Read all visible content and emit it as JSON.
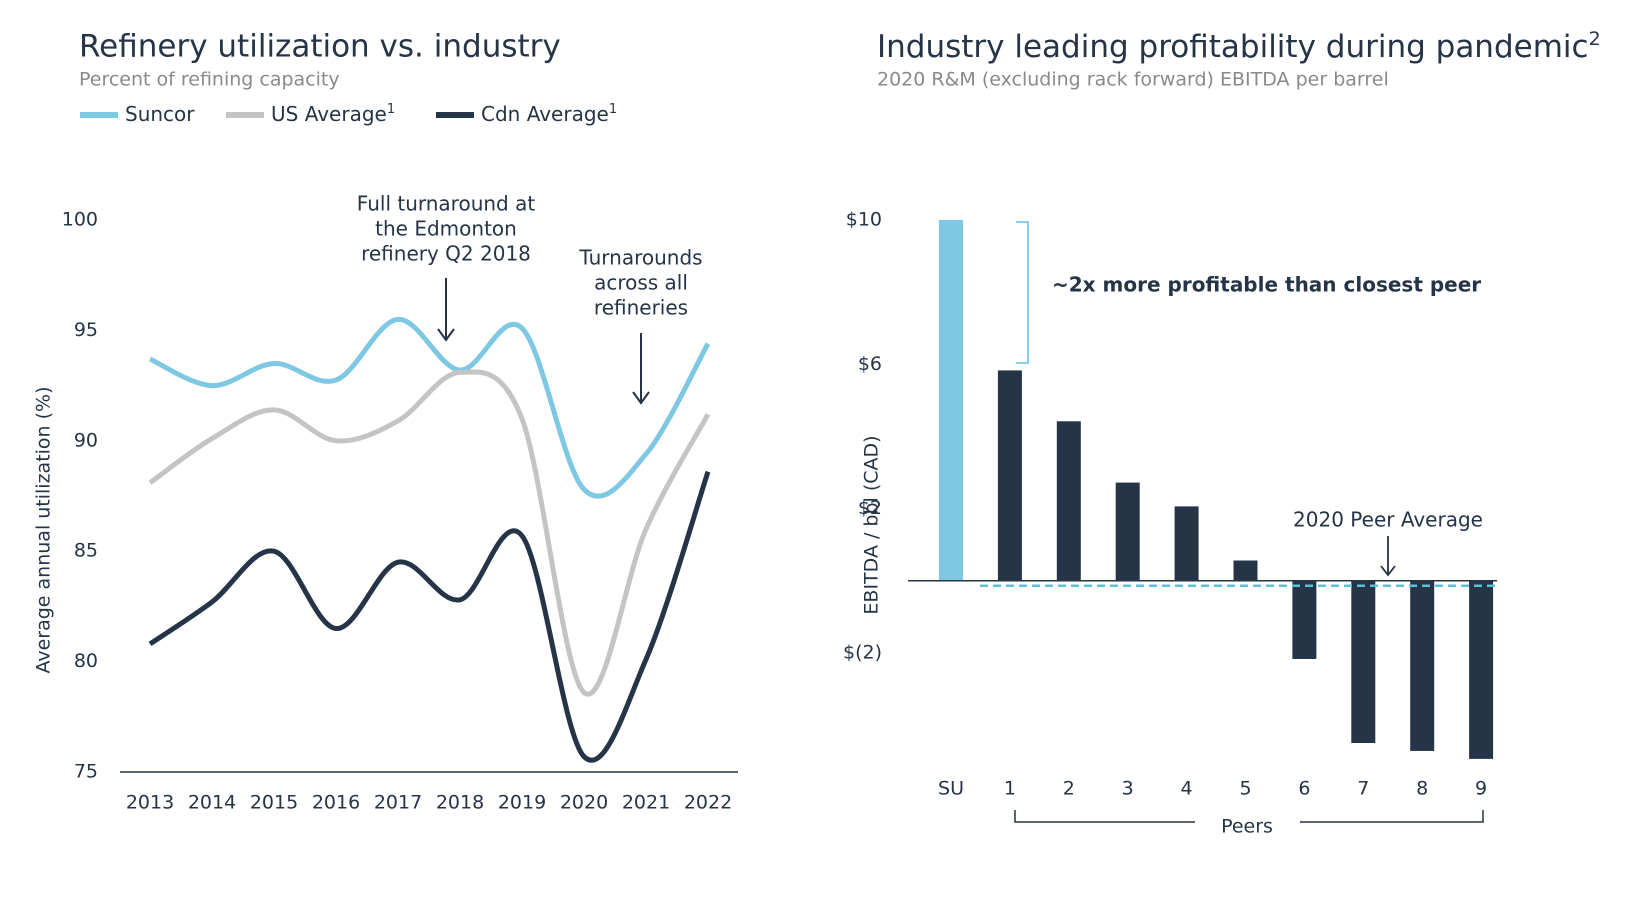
{
  "chart_data": [
    {
      "type": "line",
      "title": "Refinery utilization vs. industry",
      "subtitle": "Percent of refining capacity",
      "y_label": "Average annual utilization  (%)",
      "categories": [
        "2013",
        "2014",
        "2015",
        "2016",
        "2017",
        "2018",
        "2019",
        "2020",
        "2021",
        "2022"
      ],
      "series": [
        {
          "name": "Suncor",
          "color": "#7ec8e3",
          "values": [
            93.7,
            92.5,
            93.5,
            92.75,
            95.5,
            93.2,
            95.1,
            87.8,
            89.4,
            94.4
          ]
        },
        {
          "name": "US Average",
          "note": "1",
          "color": "#c4c4c4",
          "values": [
            88.1,
            90.1,
            91.4,
            90.0,
            90.9,
            93.1,
            91.0,
            78.6,
            86.0,
            91.2
          ]
        },
        {
          "name": "Cdn Average",
          "note": "1",
          "color": "#253447",
          "values": [
            80.8,
            82.7,
            85.0,
            81.5,
            84.5,
            82.8,
            85.7,
            75.7,
            80.1,
            88.6
          ]
        }
      ],
      "ylim": [
        75,
        100
      ],
      "yticks": [
        75,
        80,
        85,
        90,
        95,
        100
      ],
      "annotations": [
        {
          "lines": [
            "Full turnaround at",
            "the Edmonton",
            "refinery Q2 2018"
          ]
        },
        {
          "lines": [
            "Turnarounds",
            "across all",
            "refineries"
          ]
        }
      ]
    },
    {
      "type": "bar",
      "title": "Industry leading profitability during pandemic",
      "title_note": "2",
      "subtitle": "2020 R&M (excluding rack forward) EBITDA per barrel",
      "y_label": "EBITDA / bbl (CAD)",
      "categories": [
        "SU",
        "1",
        "2",
        "3",
        "4",
        "5",
        "6",
        "7",
        "8",
        "9"
      ],
      "values": [
        10,
        5.83,
        4.42,
        2.72,
        2.06,
        0.56,
        -2.17,
        -4.5,
        -4.72,
        -4.94
      ],
      "colors": [
        "#7ec8e3",
        "#253447",
        "#253447",
        "#253447",
        "#253447",
        "#253447",
        "#253447",
        "#253447",
        "#253447",
        "#253447"
      ],
      "ylim": [
        -5.3,
        10.3
      ],
      "yticks": [
        {
          "value": 10,
          "label": "$10"
        },
        {
          "value": 6,
          "label": "$6"
        },
        {
          "value": 2,
          "label": "$2"
        },
        {
          "value": -2,
          "label": "$(2)"
        }
      ],
      "group_label": "Peers",
      "peer_average": -0.14,
      "peer_average_label": "2020 Peer Average",
      "peer_average_color": "#5cc0d6",
      "callout": "~2x more profitable than closest peer"
    }
  ]
}
